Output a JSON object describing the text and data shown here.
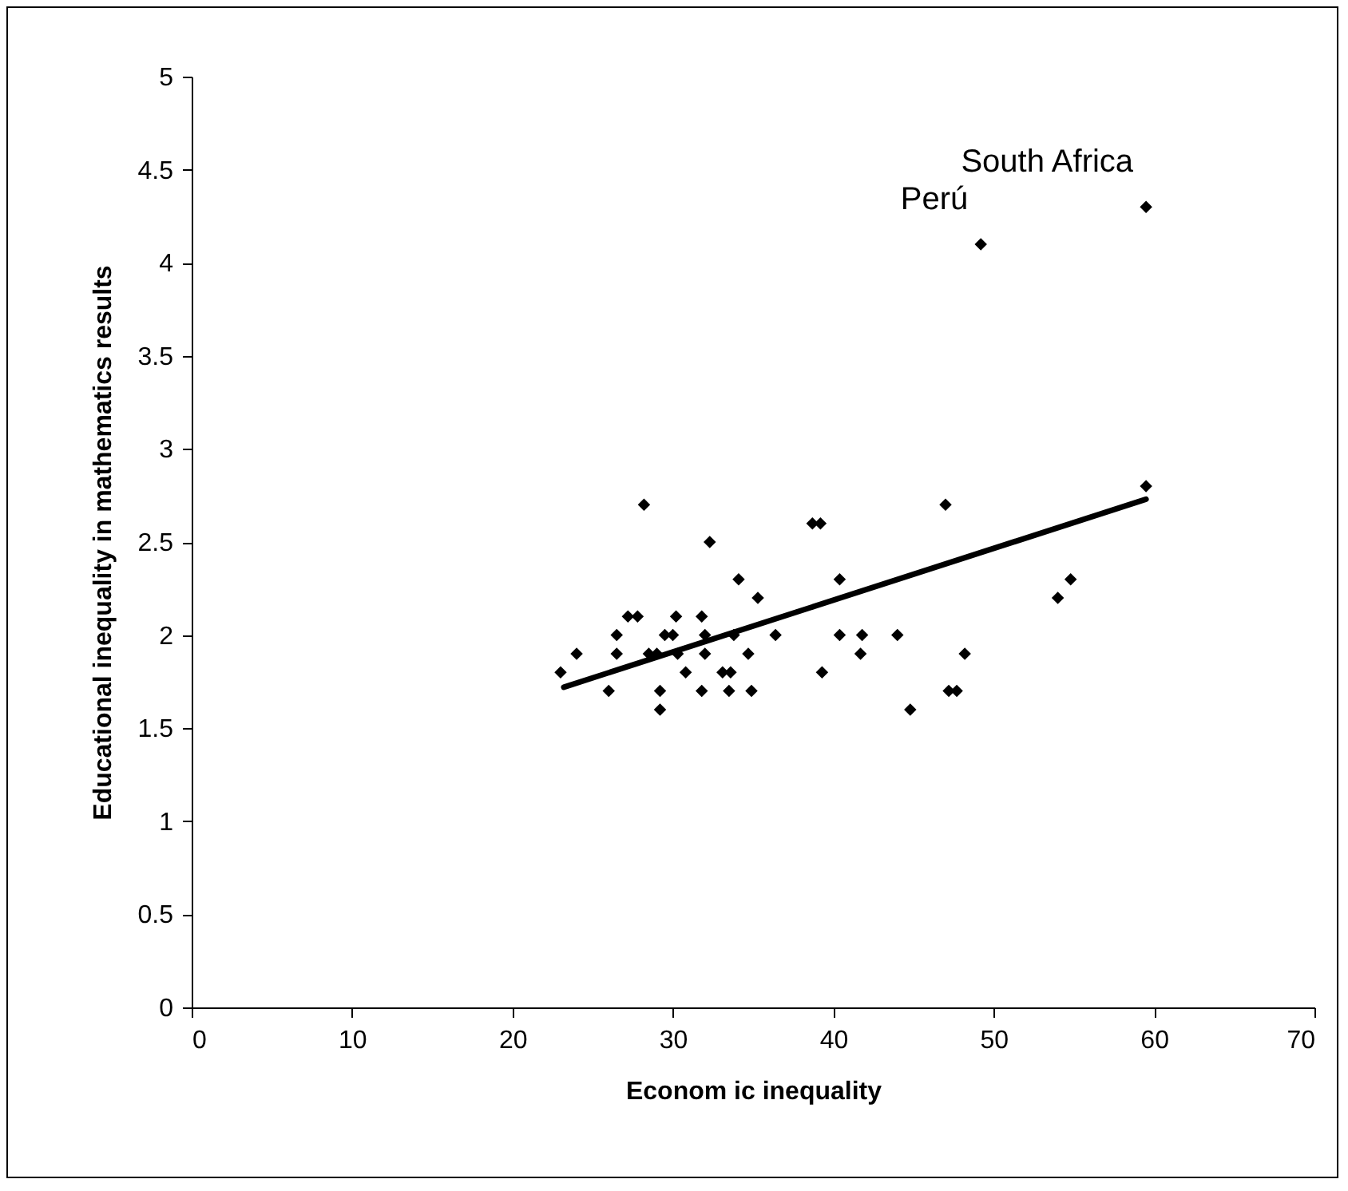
{
  "chart_data": {
    "type": "scatter",
    "xlabel": "Econom ic inequality",
    "ylabel": "Educational inequality in mathematics results",
    "xlim": [
      0,
      70
    ],
    "xticks": [
      0,
      10,
      20,
      30,
      40,
      50,
      60,
      70
    ],
    "ylim": [
      0,
      5
    ],
    "yticks": [
      0,
      0.5,
      1,
      1.5,
      2,
      2.5,
      3,
      3.5,
      4,
      4.5,
      5
    ],
    "grid": false,
    "series": [
      {
        "marker": "diamond",
        "color": "#000000",
        "x": [
          23.0,
          24.0,
          26.0,
          26.5,
          26.5,
          27.2,
          27.8,
          28.2,
          28.5,
          29.0,
          29.2,
          29.2,
          29.5,
          30.0,
          30.2,
          30.3,
          30.8,
          31.8,
          31.8,
          32.0,
          32.0,
          32.3,
          33.1,
          33.6,
          33.5,
          33.8,
          34.1,
          34.7,
          34.9,
          35.3,
          36.4,
          38.7,
          39.2,
          39.3,
          40.4,
          40.4,
          41.7,
          41.8,
          44.0,
          44.8,
          47.0,
          47.2,
          47.7,
          48.2,
          49.2,
          54.0,
          54.8,
          59.5,
          59.5
        ],
        "values": [
          1.8,
          1.9,
          1.7,
          1.9,
          2.0,
          2.1,
          2.1,
          2.7,
          1.9,
          1.9,
          1.6,
          1.7,
          2.0,
          2.0,
          2.1,
          1.9,
          1.8,
          2.1,
          1.7,
          1.9,
          2.0,
          2.5,
          1.8,
          1.8,
          1.7,
          2.0,
          2.3,
          1.9,
          1.7,
          2.2,
          2.0,
          2.6,
          2.6,
          1.8,
          2.3,
          2.0,
          1.9,
          2.0,
          2.0,
          1.6,
          2.7,
          1.7,
          1.7,
          1.9,
          4.1,
          2.2,
          2.3,
          4.3,
          2.8
        ]
      },
      {
        "type": "line",
        "color": "#000000",
        "x": [
          23.2,
          59.5
        ],
        "values": [
          1.72,
          2.73
        ]
      }
    ],
    "annotations": [
      {
        "text": "Perú",
        "x": 49.2,
        "y": 4.1
      },
      {
        "text": "South Africa",
        "x": 59.5,
        "y": 4.3
      }
    ]
  }
}
